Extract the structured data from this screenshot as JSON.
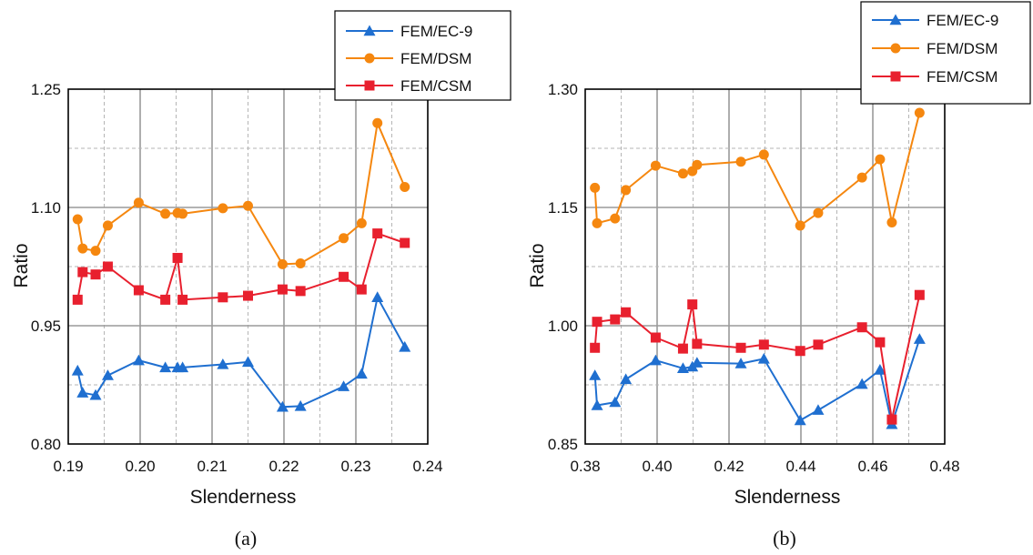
{
  "chart_data": [
    {
      "type": "line",
      "caption": "(a)",
      "xlabel": "Slenderness",
      "ylabel": "Ratio",
      "xlim": [
        0.19,
        0.24
      ],
      "ylim": [
        0.8,
        1.25
      ],
      "xticks": [
        "0.19",
        "0.20",
        "0.21",
        "0.22",
        "0.23",
        "0.24"
      ],
      "yticks": [
        "0.80",
        "0.95",
        "1.10",
        "1.25"
      ],
      "grid": true,
      "legend_position": "top-right",
      "series": [
        {
          "name": "FEM/EC-9",
          "marker": "triangle",
          "color": "#1f6fd0",
          "x": [
            0.1913,
            0.192,
            0.1938,
            0.1955,
            0.1998,
            0.2035,
            0.2052,
            0.2059,
            0.2115,
            0.215,
            0.2198,
            0.2223,
            0.2283,
            0.2308,
            0.233,
            0.2368
          ],
          "y": [
            0.893,
            0.865,
            0.862,
            0.887,
            0.906,
            0.897,
            0.897,
            0.897,
            0.901,
            0.904,
            0.847,
            0.848,
            0.873,
            0.889,
            0.986,
            0.923
          ]
        },
        {
          "name": "FEM/DSM",
          "marker": "circle",
          "color": "#f5870f",
          "x": [
            0.1913,
            0.192,
            0.1938,
            0.1955,
            0.1998,
            0.2035,
            0.2052,
            0.2059,
            0.2115,
            0.215,
            0.2198,
            0.2223,
            0.2283,
            0.2308,
            0.233,
            0.2368
          ],
          "y": [
            1.085,
            1.048,
            1.045,
            1.077,
            1.106,
            1.092,
            1.093,
            1.092,
            1.099,
            1.102,
            1.028,
            1.029,
            1.061,
            1.08,
            1.207,
            1.126
          ]
        },
        {
          "name": "FEM/CSM",
          "marker": "square",
          "color": "#e8202e",
          "x": [
            0.1913,
            0.192,
            0.1938,
            0.1955,
            0.1998,
            0.2035,
            0.2052,
            0.2059,
            0.2115,
            0.215,
            0.2198,
            0.2223,
            0.2283,
            0.2308,
            0.233,
            0.2368
          ],
          "y": [
            0.983,
            1.018,
            1.015,
            1.025,
            0.995,
            0.983,
            1.036,
            0.983,
            0.986,
            0.988,
            0.996,
            0.994,
            1.012,
            0.996,
            1.067,
            1.055
          ]
        }
      ]
    },
    {
      "type": "line",
      "caption": "(b)",
      "xlabel": "Slenderness",
      "ylabel": "Ratio",
      "xlim": [
        0.38,
        0.48
      ],
      "ylim": [
        0.85,
        1.3
      ],
      "xticks": [
        "0.38",
        "0.40",
        "0.42",
        "0.44",
        "0.46",
        "0.48"
      ],
      "yticks": [
        "0.85",
        "1.00",
        "1.15",
        "1.30"
      ],
      "grid": true,
      "legend_position": "top-right",
      "series": [
        {
          "name": "FEM/EC-9",
          "marker": "triangle",
          "color": "#1f6fd0",
          "x": [
            0.3827,
            0.3833,
            0.3883,
            0.3913,
            0.3996,
            0.4072,
            0.4098,
            0.4111,
            0.4233,
            0.4297,
            0.4398,
            0.4448,
            0.457,
            0.462,
            0.4653,
            0.473
          ],
          "y": [
            0.937,
            0.899,
            0.903,
            0.932,
            0.956,
            0.946,
            0.948,
            0.953,
            0.952,
            0.958,
            0.88,
            0.893,
            0.926,
            0.944,
            0.875,
            0.983
          ]
        },
        {
          "name": "FEM/DSM",
          "marker": "circle",
          "color": "#f5870f",
          "x": [
            0.3827,
            0.3833,
            0.3883,
            0.3913,
            0.3996,
            0.4072,
            0.4098,
            0.4111,
            0.4233,
            0.4297,
            0.4398,
            0.4448,
            0.457,
            0.462,
            0.4653,
            0.473
          ],
          "y": [
            1.175,
            1.13,
            1.136,
            1.172,
            1.203,
            1.193,
            1.196,
            1.204,
            1.208,
            1.217,
            1.127,
            1.143,
            1.188,
            1.211,
            1.131,
            1.27
          ]
        },
        {
          "name": "FEM/CSM",
          "marker": "square",
          "color": "#e8202e",
          "x": [
            0.3827,
            0.3833,
            0.3883,
            0.3913,
            0.3996,
            0.4072,
            0.4098,
            0.4111,
            0.4233,
            0.4297,
            0.4398,
            0.4448,
            0.457,
            0.462,
            0.4653,
            0.473
          ],
          "y": [
            0.972,
            1.005,
            1.008,
            1.017,
            0.985,
            0.971,
            1.027,
            0.977,
            0.972,
            0.976,
            0.968,
            0.976,
            0.998,
            0.979,
            0.881,
            1.039
          ]
        }
      ]
    }
  ]
}
